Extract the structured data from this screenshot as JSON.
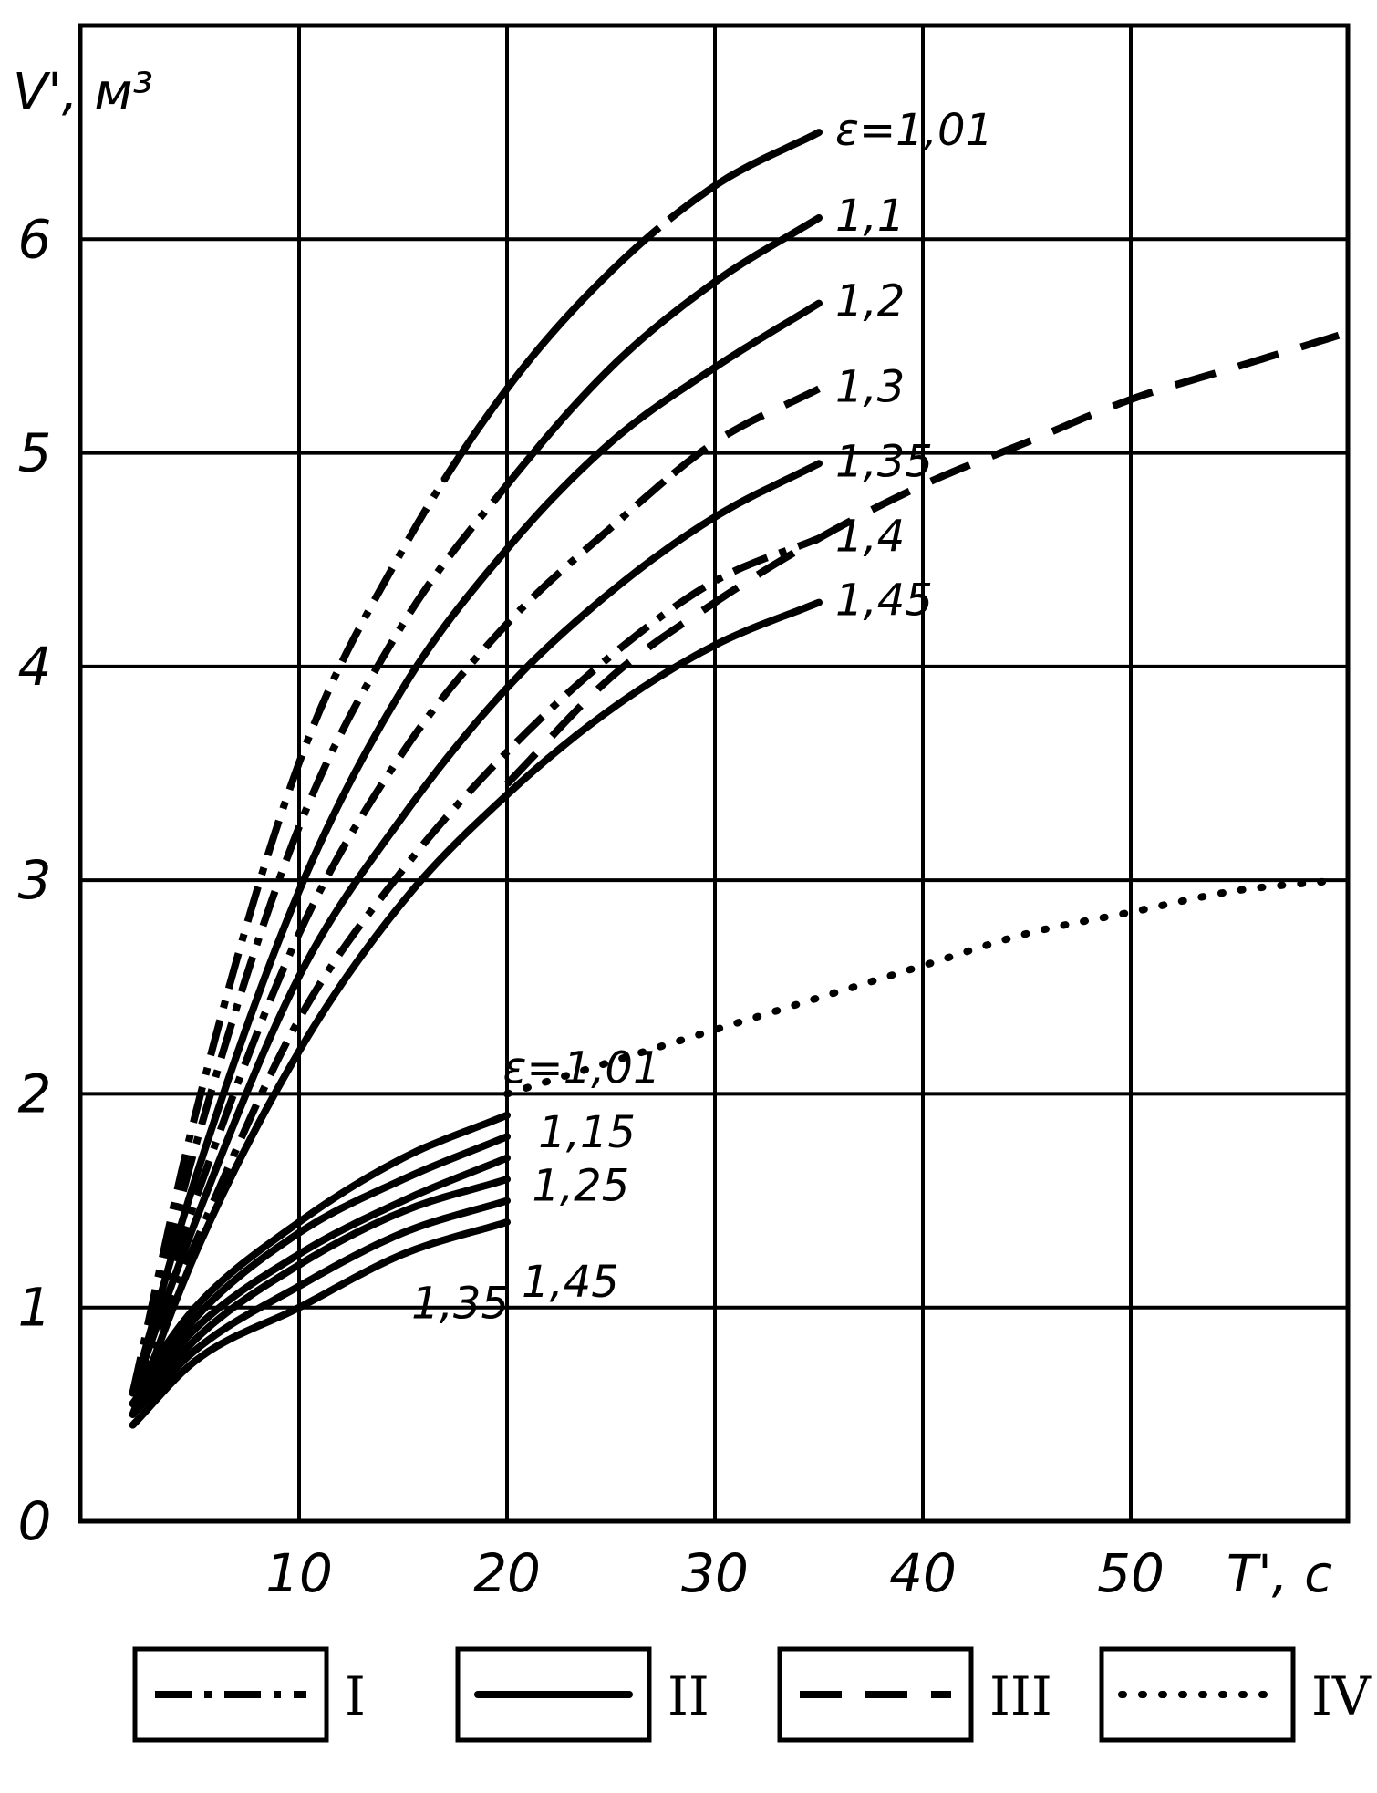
{
  "chart_data": {
    "type": "line",
    "ylabel": "V', м³",
    "xlabel": "T', с",
    "xlim": [
      0,
      60
    ],
    "ylim": [
      0,
      7
    ],
    "x_ticks": [
      "10",
      "20",
      "30",
      "40",
      "50"
    ],
    "y_ticks": [
      "0",
      "1",
      "2",
      "3",
      "4",
      "5",
      "6"
    ],
    "grid": true,
    "legend_position": "bottom",
    "legend": [
      {
        "key": "I",
        "label": "I",
        "style": "dash-dot"
      },
      {
        "key": "II",
        "label": "II",
        "style": "solid"
      },
      {
        "key": "III",
        "label": "III",
        "style": "dashed"
      },
      {
        "key": "IV",
        "label": "IV",
        "style": "dotted"
      }
    ],
    "series": [
      {
        "group": "upper",
        "label": "ε=1,01",
        "x": [
          2,
          5,
          10,
          15,
          20,
          25,
          30,
          35
        ],
        "y": [
          0.6,
          1.9,
          3.55,
          4.55,
          5.3,
          5.85,
          6.25,
          6.5
        ],
        "style_segments": [
          [
            "I",
            2,
            17
          ],
          [
            "II",
            17,
            26
          ],
          [
            "I",
            26,
            28
          ],
          [
            "II",
            28,
            35
          ]
        ]
      },
      {
        "group": "upper",
        "label": "1,1",
        "x": [
          2,
          5,
          10,
          15,
          20,
          25,
          30,
          35
        ],
        "y": [
          0.6,
          1.75,
          3.25,
          4.2,
          4.85,
          5.4,
          5.8,
          6.1
        ],
        "style_segments": [
          [
            "I",
            2,
            20
          ],
          [
            "II",
            20,
            35
          ]
        ]
      },
      {
        "group": "upper",
        "label": "1,2",
        "x": [
          2,
          5,
          10,
          15,
          20,
          25,
          30,
          35
        ],
        "y": [
          0.6,
          1.6,
          2.95,
          3.9,
          4.55,
          5.05,
          5.4,
          5.7
        ],
        "style_segments": [
          [
            "II",
            2,
            35
          ]
        ]
      },
      {
        "group": "upper",
        "label": "1,3",
        "x": [
          2,
          5,
          10,
          15,
          20,
          25,
          30,
          35
        ],
        "y": [
          0.6,
          1.5,
          2.75,
          3.6,
          4.2,
          4.65,
          5.05,
          5.3
        ],
        "style_segments": [
          [
            "I",
            2,
            28
          ],
          [
            "III",
            28,
            35
          ]
        ]
      },
      {
        "group": "upper",
        "label": "1,35",
        "x": [
          2,
          5,
          10,
          15,
          20,
          25,
          30,
          35
        ],
        "y": [
          0.6,
          1.4,
          2.55,
          3.3,
          3.9,
          4.35,
          4.7,
          4.95
        ],
        "style_segments": [
          [
            "II",
            2,
            35
          ]
        ]
      },
      {
        "group": "upper",
        "label": "1,4",
        "x": [
          2,
          5,
          10,
          15,
          20,
          25,
          30,
          35
        ],
        "y": [
          0.6,
          1.3,
          2.35,
          3.05,
          3.6,
          4.05,
          4.4,
          4.6
        ],
        "style_segments": [
          [
            "I",
            2,
            35
          ]
        ]
      },
      {
        "group": "upper",
        "label": "1,45",
        "x": [
          2,
          5,
          10,
          15,
          20,
          25,
          30,
          35
        ],
        "y": [
          0.5,
          1.25,
          2.2,
          2.9,
          3.4,
          3.8,
          4.1,
          4.3
        ],
        "style_segments": [
          [
            "II",
            2,
            35
          ]
        ]
      },
      {
        "group": "III",
        "label": "",
        "x": [
          20,
          25,
          30,
          35,
          40,
          45,
          50,
          55,
          60
        ],
        "y": [
          3.45,
          3.95,
          4.3,
          4.6,
          4.85,
          5.05,
          5.25,
          5.4,
          5.55
        ],
        "style_segments": [
          [
            "III",
            20,
            60
          ]
        ]
      },
      {
        "group": "IV",
        "label": "",
        "x": [
          20,
          25,
          30,
          35,
          40,
          45,
          50,
          55,
          60
        ],
        "y": [
          2.0,
          2.15,
          2.3,
          2.45,
          2.6,
          2.75,
          2.85,
          2.95,
          3.0
        ],
        "style_segments": [
          [
            "IV",
            20,
            60
          ]
        ]
      },
      {
        "group": "lower",
        "label": "ε=1,01",
        "x": [
          2,
          5,
          10,
          15,
          20
        ],
        "y": [
          0.6,
          1.0,
          1.4,
          1.7,
          1.9
        ],
        "style_segments": [
          [
            "II",
            2,
            20
          ]
        ]
      },
      {
        "group": "lower",
        "label": "1,15",
        "x": [
          2,
          5,
          10,
          15,
          20
        ],
        "y": [
          0.55,
          0.95,
          1.35,
          1.6,
          1.8
        ],
        "style_segments": [
          [
            "II",
            2,
            20
          ]
        ]
      },
      {
        "group": "lower",
        "label": "1,25",
        "x": [
          2,
          5,
          10,
          15,
          20
        ],
        "y": [
          0.55,
          0.9,
          1.25,
          1.5,
          1.7
        ],
        "style_segments": [
          [
            "II",
            2,
            20
          ]
        ]
      },
      {
        "group": "lower",
        "label": "",
        "x": [
          2,
          5,
          10,
          15,
          20
        ],
        "y": [
          0.5,
          0.85,
          1.2,
          1.45,
          1.6
        ],
        "style_segments": [
          [
            "II",
            2,
            20
          ]
        ]
      },
      {
        "group": "lower",
        "label": "1,35",
        "x": [
          2,
          5,
          10,
          15,
          20
        ],
        "y": [
          0.5,
          0.8,
          1.1,
          1.35,
          1.5
        ],
        "style_segments": [
          [
            "II",
            2,
            20
          ]
        ]
      },
      {
        "group": "lower",
        "label": "1,45",
        "x": [
          2,
          5,
          10,
          15,
          20
        ],
        "y": [
          0.45,
          0.75,
          1.0,
          1.25,
          1.4
        ],
        "style_segments": [
          [
            "II",
            2,
            20
          ]
        ]
      }
    ]
  }
}
